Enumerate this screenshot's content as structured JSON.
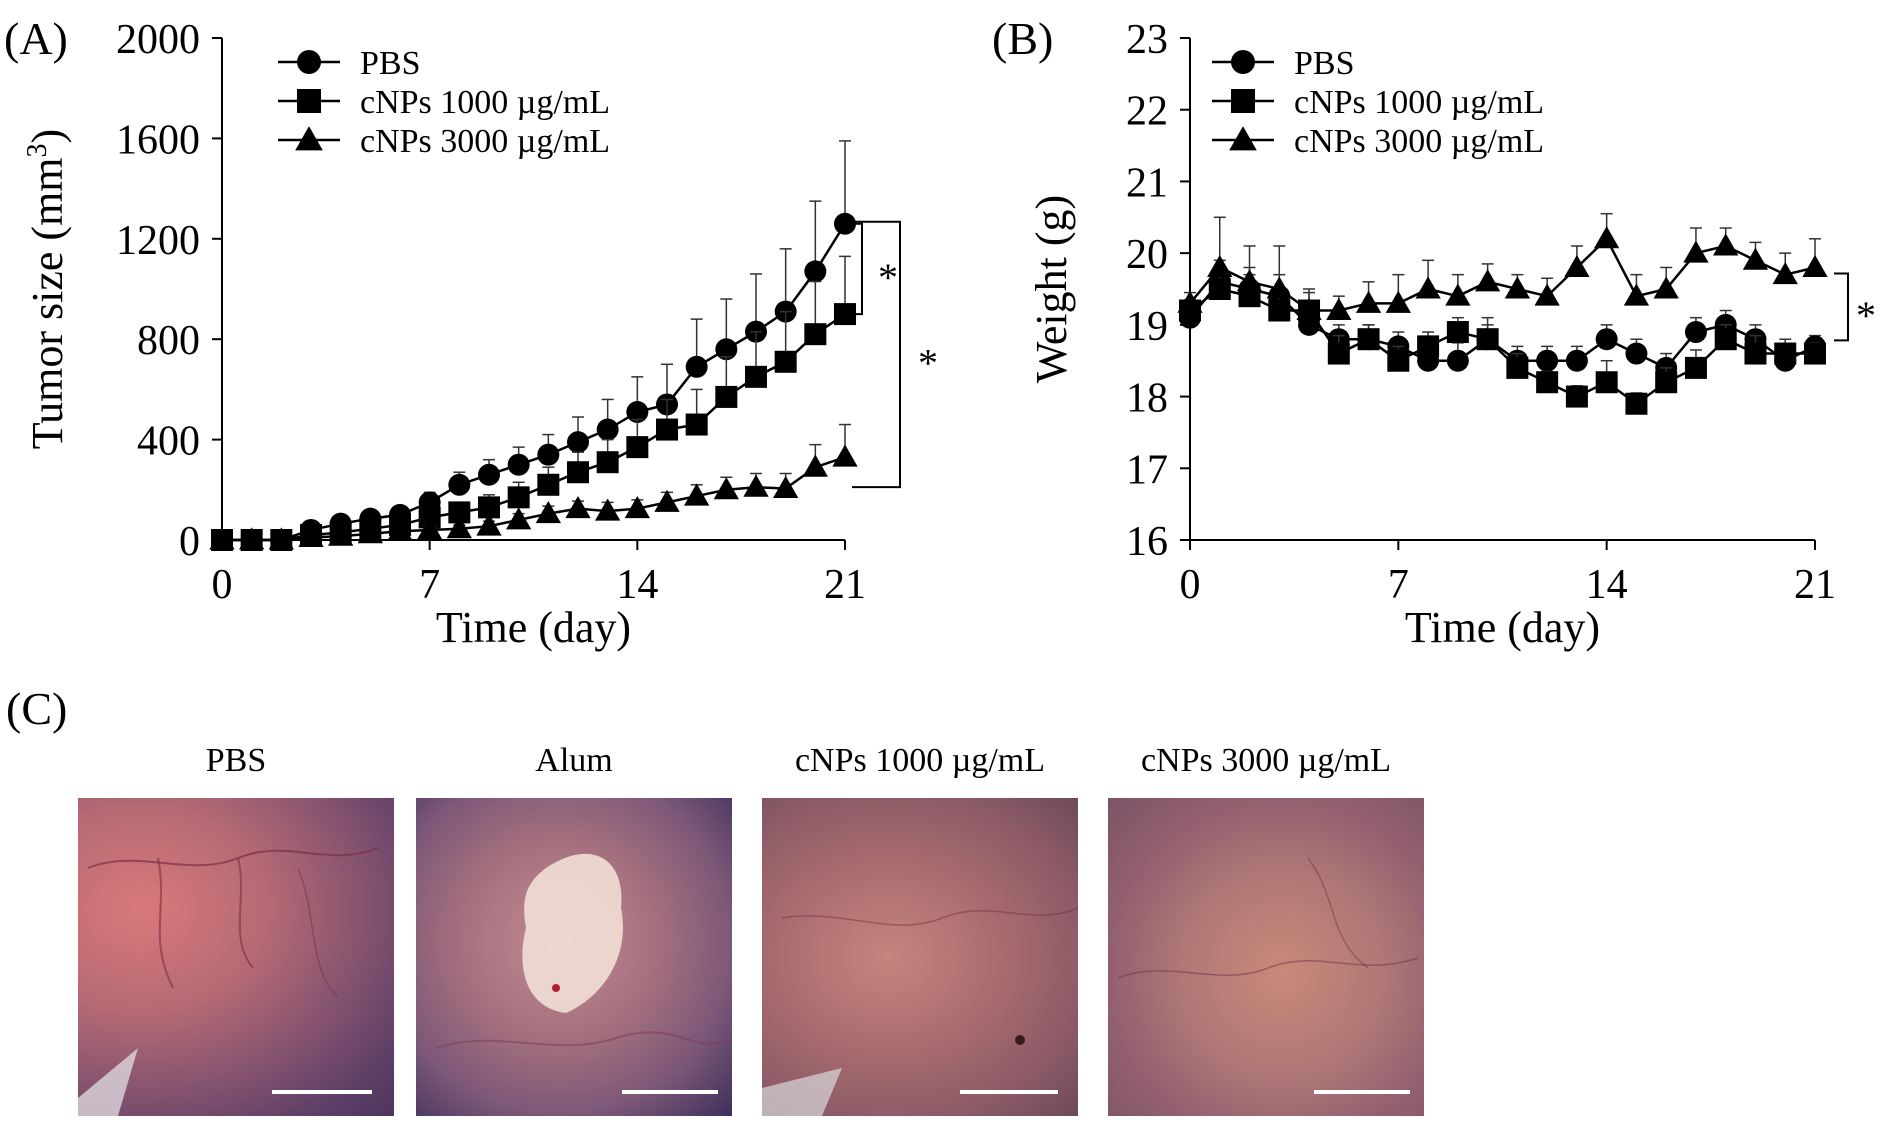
{
  "chart_data": [
    {
      "panel": "(A)",
      "type": "line",
      "xlabel": "Time (day)",
      "ylabel": "Tumor size (mm3)",
      "ylabel_base": "Tumor size (mm",
      "ylabel_sup": "3",
      "ylabel_close": ")",
      "xlim": [
        0,
        21
      ],
      "ylim": [
        0,
        2000
      ],
      "xticks": [
        0,
        7,
        14,
        21
      ],
      "yticks": [
        0,
        400,
        800,
        1200,
        1600,
        2000
      ],
      "x": [
        0,
        1,
        2,
        3,
        4,
        5,
        6,
        7,
        8,
        9,
        10,
        11,
        12,
        13,
        14,
        15,
        16,
        17,
        18,
        19,
        20,
        21
      ],
      "series": [
        {
          "name": "PBS",
          "marker": "circle",
          "values": [
            0,
            0,
            0,
            40,
            65,
            85,
            100,
            150,
            220,
            260,
            300,
            340,
            390,
            440,
            510,
            540,
            690,
            760,
            830,
            910,
            1070,
            1260
          ],
          "errors": [
            10,
            10,
            10,
            20,
            20,
            25,
            30,
            40,
            50,
            60,
            70,
            80,
            100,
            120,
            140,
            160,
            190,
            200,
            230,
            250,
            280,
            330
          ]
        },
        {
          "name": "cNPs 1000 µg/mL",
          "marker": "square",
          "values": [
            0,
            0,
            0,
            20,
            30,
            45,
            60,
            90,
            110,
            130,
            170,
            220,
            270,
            310,
            370,
            440,
            460,
            570,
            650,
            710,
            820,
            900
          ],
          "errors": [
            10,
            10,
            10,
            15,
            15,
            20,
            25,
            30,
            40,
            50,
            60,
            70,
            80,
            90,
            110,
            120,
            140,
            160,
            180,
            200,
            210,
            230
          ]
        },
        {
          "name": "cNPs 3000 µg/mL",
          "marker": "triangle",
          "values": [
            0,
            0,
            0,
            10,
            15,
            25,
            35,
            40,
            45,
            55,
            80,
            105,
            125,
            115,
            125,
            150,
            175,
            200,
            210,
            205,
            290,
            330
          ],
          "errors": [
            5,
            5,
            5,
            10,
            10,
            10,
            10,
            15,
            15,
            20,
            25,
            30,
            30,
            35,
            35,
            40,
            45,
            50,
            55,
            60,
            90,
            130
          ]
        }
      ],
      "annotations": [
        "*",
        "*"
      ]
    },
    {
      "panel": "(B)",
      "type": "line",
      "xlabel": "Time (day)",
      "ylabel": "Weight (g)",
      "xlim": [
        0,
        21
      ],
      "ylim": [
        16,
        23
      ],
      "xticks": [
        0,
        7,
        14,
        21
      ],
      "yticks": [
        16,
        17,
        18,
        19,
        20,
        21,
        22,
        23
      ],
      "x": [
        0,
        1,
        2,
        3,
        4,
        5,
        6,
        7,
        8,
        9,
        10,
        11,
        12,
        13,
        14,
        15,
        16,
        17,
        18,
        19,
        20,
        21
      ],
      "series": [
        {
          "name": "PBS",
          "marker": "circle",
          "values": [
            19.1,
            19.6,
            19.5,
            19.4,
            19.0,
            18.8,
            18.8,
            18.7,
            18.5,
            18.5,
            18.8,
            18.5,
            18.5,
            18.5,
            18.8,
            18.6,
            18.4,
            18.9,
            19.0,
            18.8,
            18.5,
            18.7
          ],
          "errors": [
            0.15,
            0.3,
            0.3,
            0.3,
            0.3,
            0.2,
            0.2,
            0.2,
            0.25,
            0.25,
            0.3,
            0.2,
            0.2,
            0.2,
            0.2,
            0.2,
            0.2,
            0.2,
            0.2,
            0.2,
            0.2,
            0.15
          ]
        },
        {
          "name": "cNPs 1000 µg/mL",
          "marker": "square",
          "values": [
            19.2,
            19.5,
            19.4,
            19.2,
            19.2,
            18.6,
            18.8,
            18.5,
            18.7,
            18.9,
            18.8,
            18.4,
            18.2,
            18.0,
            18.2,
            17.9,
            18.2,
            18.4,
            18.8,
            18.6,
            18.6,
            18.6
          ],
          "errors": [
            0.15,
            0.2,
            0.3,
            0.2,
            0.3,
            0.25,
            0.2,
            0.2,
            0.2,
            0.2,
            0.2,
            0.2,
            0.15,
            0.15,
            0.3,
            0.15,
            0.2,
            0.25,
            0.2,
            0.25,
            0.2,
            0.15
          ]
        },
        {
          "name": "cNPs 3000 µg/mL",
          "marker": "triangle",
          "values": [
            19.3,
            19.8,
            19.6,
            19.5,
            19.2,
            19.2,
            19.3,
            19.3,
            19.5,
            19.4,
            19.6,
            19.5,
            19.4,
            19.8,
            20.2,
            19.4,
            19.5,
            20.0,
            20.1,
            19.9,
            19.7,
            19.8
          ],
          "errors": [
            0.15,
            0.7,
            0.5,
            0.6,
            0.25,
            0.2,
            0.3,
            0.4,
            0.4,
            0.3,
            0.25,
            0.2,
            0.25,
            0.3,
            0.35,
            0.3,
            0.3,
            0.35,
            0.25,
            0.25,
            0.3,
            0.4
          ]
        }
      ],
      "annotations": [
        "*"
      ]
    }
  ],
  "panel_c": {
    "label": "(C)",
    "photos": [
      {
        "title": "PBS"
      },
      {
        "title": "Alum"
      },
      {
        "title": "cNPs 1000 µg/mL"
      },
      {
        "title": "cNPs 3000 µg/mL"
      }
    ]
  },
  "colors": {
    "ink": "#000000",
    "tissue_pink": "#b06a72",
    "tissue_purple": "#6a4a6e",
    "alum_white": "#f0dcd4"
  }
}
